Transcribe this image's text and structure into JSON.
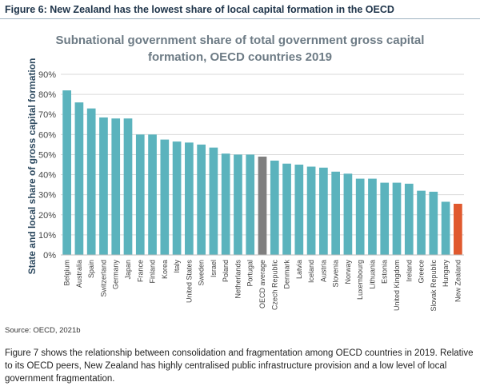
{
  "figure": {
    "title": "Figure 6: New Zealand has the lowest share of local capital formation in the OECD",
    "source": "Source: OECD, 2021b"
  },
  "paragraph": "Figure 7 shows the relationship between consolidation and fragmentation among OECD countries in 2019. Relative to its OECD peers, New Zealand has highly centralised public infrastructure provision and a low level of local government fragmentation.",
  "colors": {
    "bar": "#5bb3bd",
    "average": "#7f7f7f",
    "highlight": "#e0592e",
    "grid": "#d9d9d9",
    "tick_text": "#444444"
  },
  "chart_data": {
    "type": "bar",
    "title_lines": [
      "Subnational government share of total government gross capital",
      "formation, OECD countries 2019"
    ],
    "xlabel": "",
    "ylabel": "State and local share of gross capital formation",
    "ylim": [
      0,
      90
    ],
    "yticks": [
      0,
      10,
      20,
      30,
      40,
      50,
      60,
      70,
      80,
      90
    ],
    "ytick_suffix": "%",
    "grid": true,
    "legend": "none",
    "categories": [
      "Belgium",
      "Australia",
      "Spain",
      "Switzerland",
      "Germany",
      "Japan",
      "France",
      "Finland",
      "Korea",
      "Italy",
      "United States",
      "Sweden",
      "Israel",
      "Poland",
      "Netherlands",
      "Portugal",
      "OECD average",
      "Czech Republic",
      "Denmark",
      "Latvia",
      "Iceland",
      "Austria",
      "Slovenia",
      "Norway",
      "Luxembourg",
      "Lithuania",
      "Estonia",
      "United Kingdom",
      "Ireland",
      "Greece",
      "Slovak Republic",
      "Hungary",
      "New Zealand"
    ],
    "values": [
      82,
      76,
      73,
      68.5,
      68,
      68,
      60,
      60,
      57.5,
      56.5,
      56,
      55,
      53.5,
      50.5,
      50,
      50,
      49,
      47,
      45.5,
      45,
      44,
      43.5,
      41.5,
      40.5,
      38,
      38,
      36,
      36,
      35.5,
      32,
      31.5,
      26.5,
      25.5
    ],
    "average_category": "OECD average",
    "highlight_category": "New Zealand"
  }
}
